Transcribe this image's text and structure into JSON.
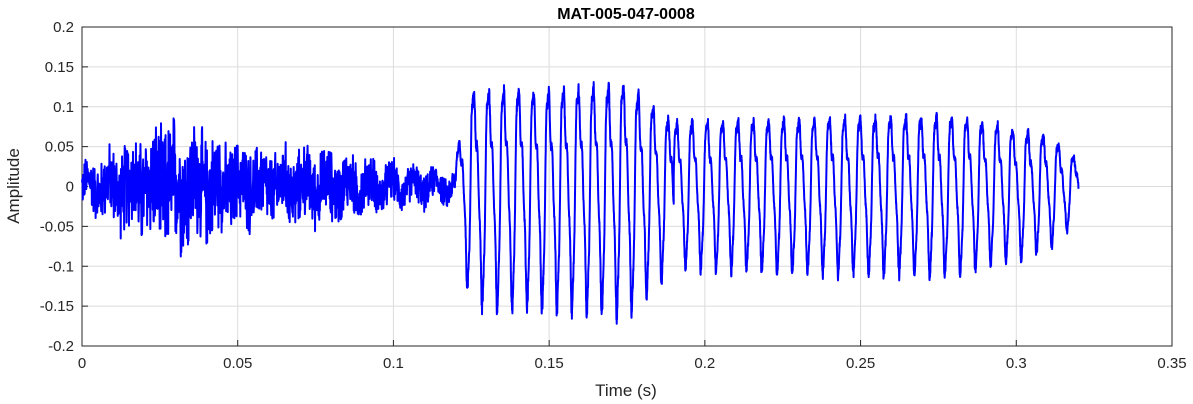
{
  "chart_data": {
    "type": "line",
    "title": "MAT-005-047-0008",
    "xlabel": "Time (s)",
    "ylabel": "Amplitude",
    "xlim": [
      0,
      0.35
    ],
    "ylim": [
      -0.2,
      0.2
    ],
    "grid": true,
    "x_ticks": [
      0,
      0.05,
      0.1,
      0.15,
      0.2,
      0.25,
      0.3,
      0.35
    ],
    "x_tick_labels": [
      "0",
      "0.05",
      "0.1",
      "0.15",
      "0.2",
      "0.25",
      "0.3",
      "0.35"
    ],
    "y_ticks": [
      -0.2,
      -0.15,
      -0.1,
      -0.05,
      0,
      0.05,
      0.1,
      0.15,
      0.2
    ],
    "y_tick_labels": [
      "-0.2",
      "-0.15",
      "-0.1",
      "-0.05",
      "0",
      "0.05",
      "0.1",
      "0.15",
      "0.2"
    ],
    "line_color": "#0000ff",
    "segments": [
      {
        "x_start": 0.0,
        "x_end": 0.12,
        "kind": "noise",
        "envelope": [
          [
            0.0,
            0.03
          ],
          [
            0.02,
            0.08
          ],
          [
            0.03,
            0.1
          ],
          [
            0.05,
            0.06
          ],
          [
            0.08,
            0.05
          ],
          [
            0.1,
            0.03
          ],
          [
            0.12,
            0.02
          ]
        ]
      },
      {
        "x_start": 0.12,
        "x_end": 0.19,
        "kind": "voiced",
        "period": 0.0048,
        "envelope": [
          [
            0.12,
            0.05
          ],
          [
            0.125,
            0.15
          ],
          [
            0.15,
            0.15
          ],
          [
            0.175,
            0.16
          ],
          [
            0.19,
            0.1
          ]
        ]
      },
      {
        "x_start": 0.19,
        "x_end": 0.32,
        "kind": "voiced",
        "period": 0.0049,
        "envelope": [
          [
            0.19,
            0.1
          ],
          [
            0.22,
            0.105
          ],
          [
            0.28,
            0.11
          ],
          [
            0.31,
            0.08
          ],
          [
            0.32,
            0.04
          ]
        ]
      }
    ]
  }
}
